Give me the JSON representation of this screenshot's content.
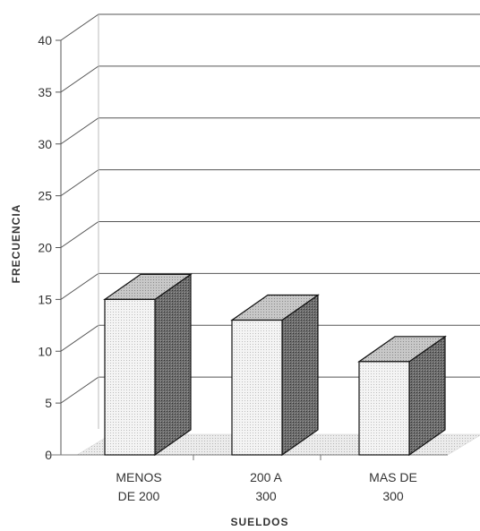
{
  "chart_data": {
    "type": "bar",
    "categories": [
      [
        "MENOS",
        "DE 200"
      ],
      [
        "200 A",
        "300"
      ],
      [
        "MAS DE",
        "300"
      ]
    ],
    "values": [
      15,
      13,
      9
    ],
    "xlabel": "SUELDOS",
    "ylabel": "FRECUENCIA",
    "ylim": [
      0,
      40
    ],
    "yticks": [
      0,
      5,
      10,
      15,
      20,
      25,
      30,
      35,
      40
    ],
    "grid": true,
    "style": "3d",
    "colors": {
      "front": "#f2f2f2",
      "side": "#6f6f6f",
      "top": "#c4c4c4",
      "floor": "#e2e2e2"
    }
  }
}
